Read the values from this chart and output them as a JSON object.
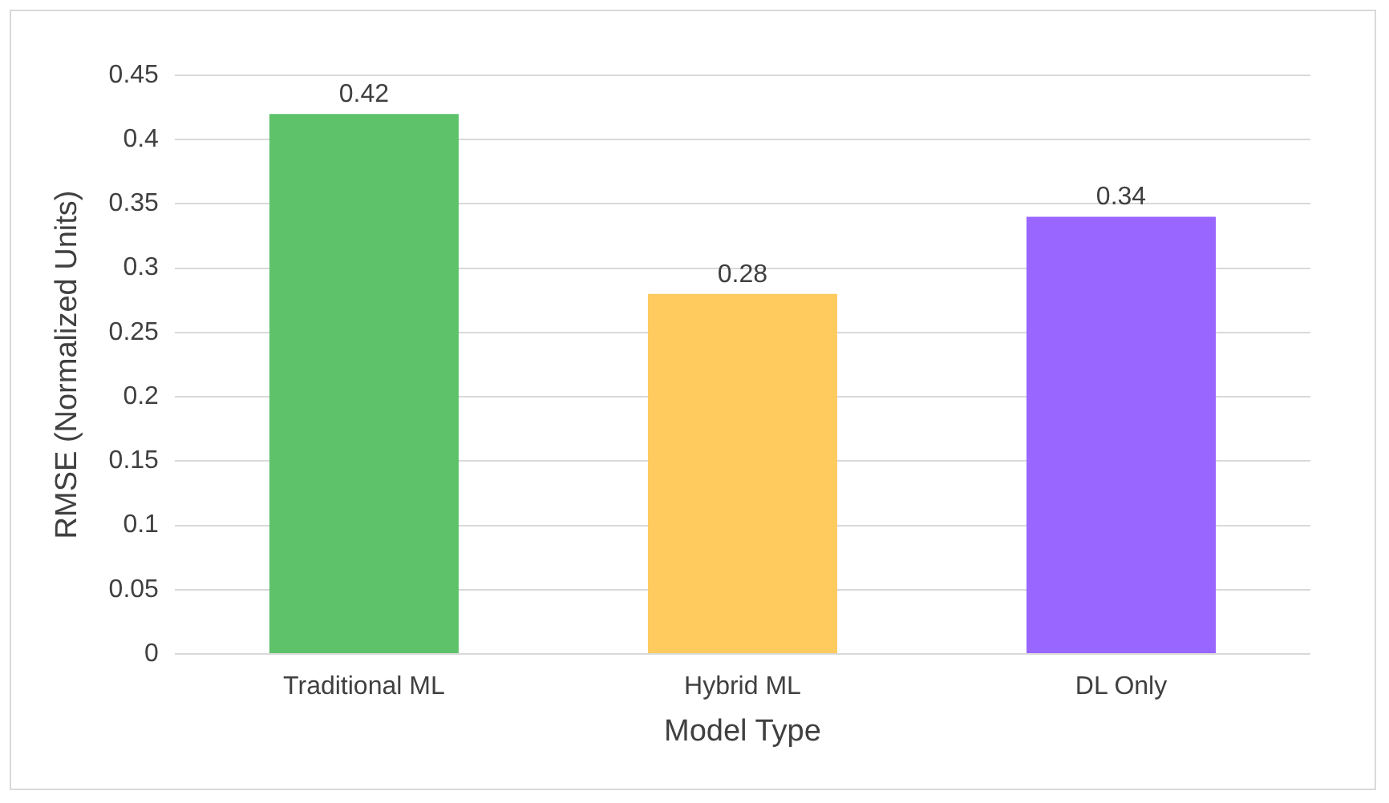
{
  "chart_data": {
    "type": "bar",
    "xlabel": "Model Type",
    "ylabel": "RMSE (Normalized Units)",
    "categories": [
      "Traditional ML",
      "Hybrid ML",
      "DL Only"
    ],
    "values": [
      0.42,
      0.28,
      0.34
    ],
    "colors": [
      "#5ec26a",
      "#ffca5e",
      "#9966ff"
    ],
    "ylim": [
      0,
      0.45
    ],
    "yticks": [
      0,
      0.05,
      0.1,
      0.15,
      0.2,
      0.25,
      0.3,
      0.35,
      0.4,
      0.45
    ],
    "grid": "y",
    "legend": false,
    "data_labels": true
  }
}
